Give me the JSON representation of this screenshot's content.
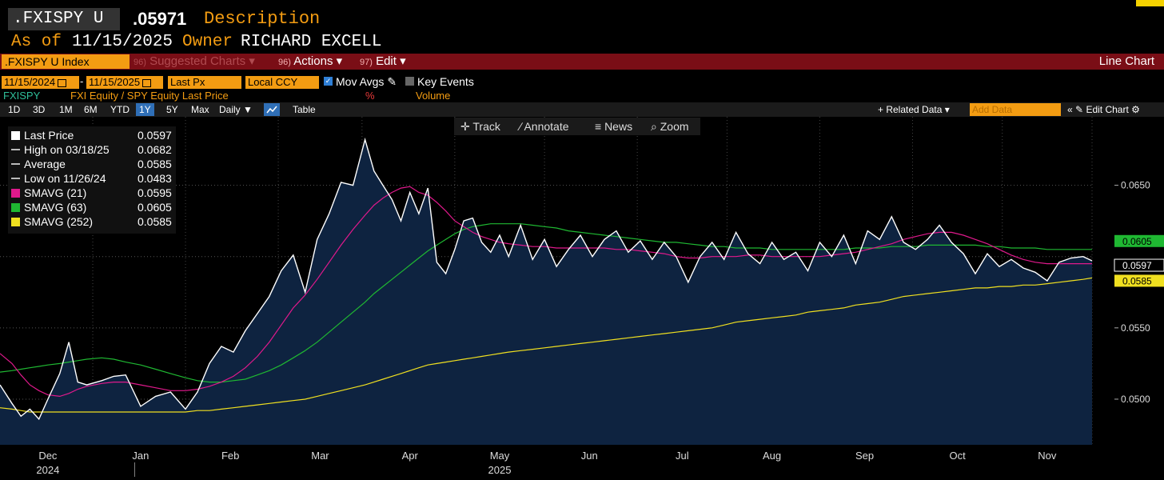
{
  "header": {
    "ticker": ".FXISPY U",
    "price": ".05971",
    "description_label": "Description",
    "as_of_label": "As of",
    "as_of_date": "11/15/2025",
    "owner_label": "Owner",
    "owner_name": "RICHARD EXCELL"
  },
  "menubar": {
    "security": ".FXISPY U Index",
    "suggested_num": "96)",
    "suggested": "Suggested Charts",
    "actions_num": "96)",
    "actions": "Actions",
    "edit_num": "97)",
    "edit": "Edit",
    "chart_type": "Line Chart"
  },
  "controls": {
    "date_from": "11/15/2024",
    "date_sep": "-",
    "date_to": "11/15/2025",
    "field": "Last Px",
    "currency": "Local CCY",
    "mov_avgs": "Mov Avgs",
    "key_events": "Key Events",
    "row2_ticker": "FXISPY",
    "row2_desc": "FXI Equity / SPY Equity Last Price",
    "row2_pct": "%",
    "row2_volume": "Volume"
  },
  "ranges": {
    "items": [
      "1D",
      "3D",
      "1M",
      "6M",
      "YTD",
      "1Y",
      "5Y",
      "Max"
    ],
    "active": "1Y",
    "frequency": "Daily",
    "table": "Table",
    "related_data": "+ Related Data",
    "add_data": "Add Data",
    "edit_chart": "Edit Chart"
  },
  "toolbar": {
    "track": "Track",
    "annotate": "Annotate",
    "news": "News",
    "zoom": "Zoom"
  },
  "legend": {
    "items": [
      {
        "label": "Last Price",
        "value": "0.0597",
        "color": "#ffffff"
      },
      {
        "label": "High on 03/18/25",
        "value": "0.0682",
        "color": "#bbbbbb"
      },
      {
        "label": "Average",
        "value": "0.0585",
        "color": "#bbbbbb"
      },
      {
        "label": "Low on 11/26/24",
        "value": "0.0483",
        "color": "#bbbbbb"
      },
      {
        "label": "SMAVG (21)",
        "value": "0.0595",
        "color": "#e0198c"
      },
      {
        "label": "SMAVG (63)",
        "value": "0.0605",
        "color": "#1fb832"
      },
      {
        "label": "SMAVG (252)",
        "value": "0.0585",
        "color": "#f0e020"
      }
    ]
  },
  "chart_data": {
    "type": "line",
    "title": "FXI Equity / SPY Equity Last Price",
    "ylim": [
      0.0468,
      0.0698
    ],
    "yticks": [
      "0.0500",
      "0.0550",
      "0.0650"
    ],
    "ytick_values": [
      0.05,
      0.055,
      0.065
    ],
    "month_labels": [
      "Dec",
      "Jan",
      "Feb",
      "Mar",
      "Apr",
      "May",
      "Jun",
      "Jul",
      "Aug",
      "Sep",
      "Oct",
      "Nov"
    ],
    "year_labels": [
      "2024",
      "2025"
    ],
    "x_days": [
      0,
      4,
      7,
      10,
      13,
      16,
      20,
      23,
      26,
      29,
      34,
      38,
      42,
      47,
      52,
      57,
      62,
      66,
      70,
      74,
      78,
      82,
      86,
      90,
      94,
      98,
      102,
      106,
      110,
      114,
      118,
      122,
      125,
      128,
      131,
      134,
      137,
      140,
      143,
      146,
      149,
      152,
      155,
      158,
      161,
      164,
      167,
      170,
      174,
      178,
      182,
      186,
      190,
      194,
      198,
      202,
      206,
      210,
      214,
      218,
      222,
      226,
      230,
      234,
      238,
      242,
      246,
      250,
      254,
      258,
      262,
      266,
      270,
      274,
      278,
      282,
      286,
      290,
      294,
      298,
      302,
      306,
      310,
      314,
      318,
      322,
      326,
      330,
      334,
      338,
      342,
      346,
      350,
      354,
      358,
      362,
      365
    ],
    "series": [
      {
        "name": "Last Price",
        "color": "#ffffff",
        "values": [
          0.051,
          0.0497,
          0.0488,
          0.0493,
          0.0486,
          0.05,
          0.0518,
          0.054,
          0.0512,
          0.051,
          0.0513,
          0.0516,
          0.0517,
          0.0495,
          0.0502,
          0.0505,
          0.0493,
          0.0505,
          0.0525,
          0.0537,
          0.0533,
          0.0548,
          0.056,
          0.0572,
          0.059,
          0.0601,
          0.0575,
          0.0612,
          0.063,
          0.0652,
          0.065,
          0.0682,
          0.066,
          0.065,
          0.064,
          0.0625,
          0.0645,
          0.063,
          0.0648,
          0.0596,
          0.0588,
          0.0605,
          0.0625,
          0.0627,
          0.061,
          0.0603,
          0.0615,
          0.06,
          0.0622,
          0.0598,
          0.0612,
          0.0593,
          0.0605,
          0.0615,
          0.06,
          0.0612,
          0.0618,
          0.0603,
          0.0611,
          0.0598,
          0.061,
          0.06,
          0.0582,
          0.06,
          0.061,
          0.0598,
          0.0617,
          0.0602,
          0.0595,
          0.061,
          0.0598,
          0.0603,
          0.059,
          0.061,
          0.06,
          0.0615,
          0.0595,
          0.0618,
          0.0612,
          0.0628,
          0.061,
          0.0605,
          0.0612,
          0.0622,
          0.061,
          0.0602,
          0.0588,
          0.0602,
          0.0593,
          0.0598,
          0.0592,
          0.0589,
          0.0583,
          0.0596,
          0.0599,
          0.06,
          0.0597
        ]
      },
      {
        "name": "SMAVG (21)",
        "color": "#e0198c",
        "values": [
          0.0532,
          0.0525,
          0.0517,
          0.051,
          0.0506,
          0.0503,
          0.0502,
          0.0504,
          0.0507,
          0.0509,
          0.0511,
          0.0512,
          0.0512,
          0.051,
          0.0508,
          0.0506,
          0.0506,
          0.0507,
          0.0509,
          0.0512,
          0.0516,
          0.0522,
          0.053,
          0.054,
          0.0552,
          0.0564,
          0.0573,
          0.0584,
          0.0596,
          0.0608,
          0.0619,
          0.0629,
          0.0636,
          0.0641,
          0.0645,
          0.0648,
          0.0649,
          0.0645,
          0.0643,
          0.0638,
          0.0632,
          0.0625,
          0.0621,
          0.0617,
          0.0614,
          0.0612,
          0.061,
          0.0609,
          0.0608,
          0.0607,
          0.0607,
          0.0606,
          0.0606,
          0.0606,
          0.0606,
          0.0606,
          0.0605,
          0.0605,
          0.0604,
          0.0603,
          0.0602,
          0.06,
          0.0599,
          0.0599,
          0.06,
          0.06,
          0.06,
          0.0601,
          0.0601,
          0.06,
          0.06,
          0.06,
          0.06,
          0.06,
          0.0601,
          0.0602,
          0.0603,
          0.0605,
          0.0607,
          0.0609,
          0.0612,
          0.0614,
          0.0616,
          0.0617,
          0.0617,
          0.0615,
          0.0612,
          0.0609,
          0.0605,
          0.0601,
          0.0598,
          0.0596,
          0.0595,
          0.0595,
          0.0595,
          0.0595,
          0.0595
        ]
      },
      {
        "name": "SMAVG (63)",
        "color": "#1fb832",
        "values": [
          0.0519,
          0.052,
          0.0521,
          0.0522,
          0.0523,
          0.0524,
          0.0525,
          0.0526,
          0.0527,
          0.0528,
          0.0529,
          0.0528,
          0.0526,
          0.0524,
          0.0521,
          0.0518,
          0.0515,
          0.0513,
          0.0512,
          0.0512,
          0.0513,
          0.0514,
          0.0517,
          0.052,
          0.0524,
          0.0529,
          0.0534,
          0.054,
          0.0547,
          0.0554,
          0.0561,
          0.0568,
          0.0574,
          0.0579,
          0.0584,
          0.0589,
          0.0594,
          0.0599,
          0.0604,
          0.0608,
          0.0612,
          0.0616,
          0.0619,
          0.0621,
          0.0622,
          0.0623,
          0.0623,
          0.0623,
          0.0623,
          0.0622,
          0.0621,
          0.062,
          0.0618,
          0.0617,
          0.0616,
          0.0615,
          0.0614,
          0.0613,
          0.0612,
          0.0611,
          0.061,
          0.061,
          0.0609,
          0.0608,
          0.0607,
          0.0607,
          0.0606,
          0.0606,
          0.0606,
          0.0605,
          0.0605,
          0.0605,
          0.0605,
          0.0605,
          0.0605,
          0.0605,
          0.0606,
          0.0606,
          0.0606,
          0.0607,
          0.0607,
          0.0607,
          0.0608,
          0.0608,
          0.0608,
          0.0608,
          0.0608,
          0.0607,
          0.0607,
          0.0606,
          0.0606,
          0.0606,
          0.0605,
          0.0605,
          0.0605,
          0.0605,
          0.0605
        ]
      },
      {
        "name": "SMAVG (252)",
        "color": "#f0e020",
        "values": [
          0.0494,
          0.0493,
          0.0492,
          0.0491,
          0.0491,
          0.0491,
          0.0491,
          0.0491,
          0.0491,
          0.0491,
          0.0491,
          0.0491,
          0.0491,
          0.0491,
          0.0491,
          0.0491,
          0.0491,
          0.0492,
          0.0492,
          0.0493,
          0.0494,
          0.0495,
          0.0496,
          0.0497,
          0.0498,
          0.0499,
          0.05,
          0.0502,
          0.0504,
          0.0506,
          0.0508,
          0.051,
          0.0512,
          0.0514,
          0.0516,
          0.0518,
          0.052,
          0.0522,
          0.0524,
          0.0525,
          0.0526,
          0.0527,
          0.0528,
          0.0529,
          0.053,
          0.0531,
          0.0532,
          0.0533,
          0.0534,
          0.0535,
          0.0536,
          0.0537,
          0.0538,
          0.0539,
          0.054,
          0.0541,
          0.0542,
          0.0543,
          0.0544,
          0.0545,
          0.0546,
          0.0547,
          0.0548,
          0.0549,
          0.055,
          0.0552,
          0.0554,
          0.0555,
          0.0556,
          0.0557,
          0.0558,
          0.0559,
          0.0561,
          0.0562,
          0.0563,
          0.0564,
          0.0566,
          0.0567,
          0.0568,
          0.057,
          0.0572,
          0.0573,
          0.0574,
          0.0575,
          0.0576,
          0.0577,
          0.0578,
          0.0578,
          0.0579,
          0.0579,
          0.058,
          0.058,
          0.0581,
          0.0582,
          0.0583,
          0.0584,
          0.0585
        ]
      }
    ],
    "last_value_labels": [
      {
        "text": "0.0605",
        "color": "#1fb832",
        "value": 0.0605
      },
      {
        "text": "0.0597",
        "color": "#ffffff",
        "value": 0.0597
      },
      {
        "text": "0.0585",
        "color": "#f0e020",
        "value": 0.0585
      }
    ]
  },
  "colors": {
    "background": "#000000",
    "area_fill": "#0e2340",
    "accent_orange": "#f39c12",
    "menubar_red": "#7a0e16"
  }
}
